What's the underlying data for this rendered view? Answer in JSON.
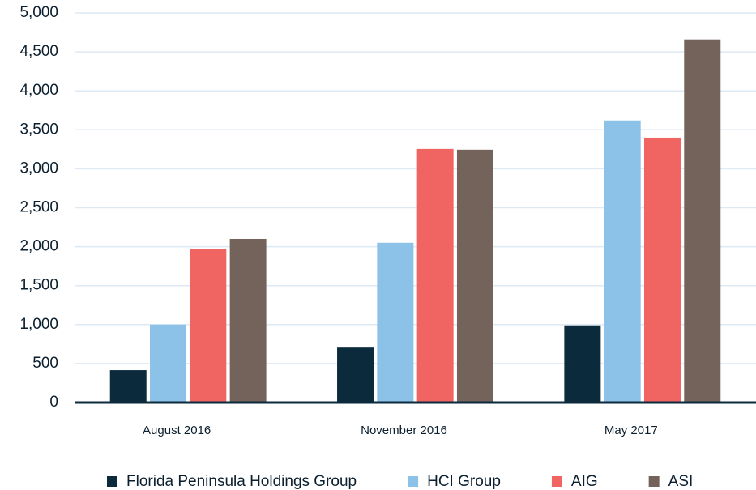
{
  "chart_data": {
    "type": "bar",
    "categories": [
      "August 2016",
      "November 2016",
      "May 2017"
    ],
    "series": [
      {
        "name": "Florida Peninsula Holdings Group",
        "color": "#0b2a3c",
        "values": [
          415,
          705,
          990
        ]
      },
      {
        "name": "HCI Group",
        "color": "#8cc1e8",
        "values": [
          1000,
          2050,
          3620
        ]
      },
      {
        "name": "AIG",
        "color": "#f06461",
        "values": [
          1965,
          3255,
          3400
        ]
      },
      {
        "name": "ASI",
        "color": "#74635a",
        "values": [
          2100,
          3245,
          4660
        ]
      }
    ],
    "ylim": [
      0,
      5000
    ],
    "yticks": [
      0,
      500,
      {
        "value": 1000,
        "label": "1,000"
      },
      {
        "value": 1500,
        "label": "1,500"
      },
      {
        "value": 2000,
        "label": "2,000"
      },
      {
        "value": 2500,
        "label": "2,500"
      },
      {
        "value": 3000,
        "label": "3,000"
      },
      {
        "value": 3500,
        "label": "3,500"
      },
      {
        "value": 4000,
        "label": "4,000"
      },
      {
        "value": 4500,
        "label": "4,500"
      },
      {
        "value": 5000,
        "label": "5,000"
      }
    ],
    "grid": true,
    "legend": "bottom"
  }
}
